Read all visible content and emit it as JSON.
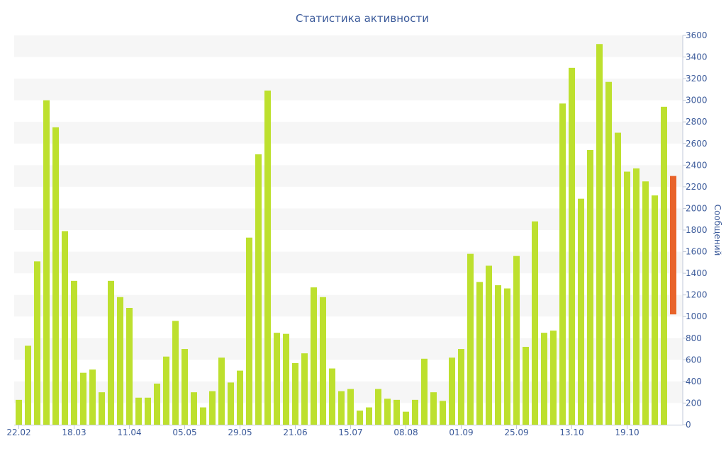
{
  "chart_data": {
    "type": "bar",
    "title": "Статистика активности",
    "xlabel": "",
    "ylabel": "Сообщений",
    "ylim": [
      0,
      3600
    ],
    "y_ticks": [
      0,
      200,
      400,
      600,
      800,
      1000,
      1200,
      1400,
      1600,
      1800,
      2000,
      2200,
      2400,
      2600,
      2800,
      3000,
      3200,
      3400,
      3600
    ],
    "y_axis_side": "right",
    "grid": "alternating horizontal bands",
    "x_tick_labels": [
      "22.02",
      "18.03",
      "11.04",
      "05.05",
      "29.05",
      "21.06",
      "15.07",
      "08.08",
      "01.09",
      "25.09",
      "13.10",
      "19.10"
    ],
    "x_tick_bar_index": [
      0,
      6,
      12,
      18,
      24,
      30,
      36,
      42,
      48,
      54,
      60,
      66
    ],
    "series": [
      {
        "color": "#bde02e",
        "values": [
          230,
          730,
          1510,
          3000,
          2750,
          1790,
          1330,
          480,
          510,
          300,
          1330,
          1180,
          1080,
          250,
          250,
          380,
          630,
          960,
          700,
          300,
          160,
          310,
          620,
          390,
          500,
          1730,
          2500,
          3090,
          850,
          840,
          570,
          660,
          1270,
          1180,
          520,
          310,
          330,
          130,
          160,
          330,
          240,
          230,
          120,
          230,
          610,
          300,
          220,
          620,
          700,
          1580,
          1320,
          1470,
          1290,
          1260,
          1560,
          720,
          1880,
          850,
          870,
          2970,
          3300,
          2090,
          2540,
          3520,
          3170,
          2700,
          2340,
          2370,
          2250,
          2120,
          2940
        ]
      },
      {
        "color": "#e8632a",
        "floating_range": [
          1020,
          2300
        ]
      }
    ]
  }
}
